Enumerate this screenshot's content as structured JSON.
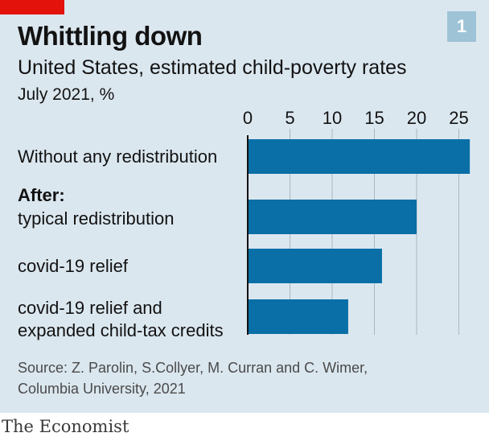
{
  "branding": {
    "accent_color": "#e3120b",
    "publisher": "The Economist"
  },
  "chart_number": "1",
  "title": "Whittling down",
  "subtitle": "United States, estimated child-poverty rates",
  "unit": "July 2021, %",
  "source_lines": [
    "Source: Z. Parolin, S.Collyer, M. Curran and C. Wimer,",
    "Columbia University, 2021"
  ],
  "chart_data": {
    "type": "bar",
    "orientation": "horizontal",
    "xlim": [
      0,
      26
    ],
    "ticks": [
      0,
      5,
      10,
      15,
      20,
      25
    ],
    "tick_labels": [
      "0",
      "5",
      "10",
      "15",
      "20",
      "25"
    ],
    "grid": true,
    "bar_color": "#0a6fa6",
    "group_label": "After:",
    "categories": [
      {
        "lines": [
          "Without any redistribution"
        ],
        "value": 26.3
      },
      {
        "lines": [
          "typical redistribution"
        ],
        "value": 20.0
      },
      {
        "lines": [
          "covid-19 relief"
        ],
        "value": 15.9
      },
      {
        "lines": [
          "covid-19 relief and",
          "expanded child-tax credits"
        ],
        "value": 11.9
      }
    ]
  }
}
